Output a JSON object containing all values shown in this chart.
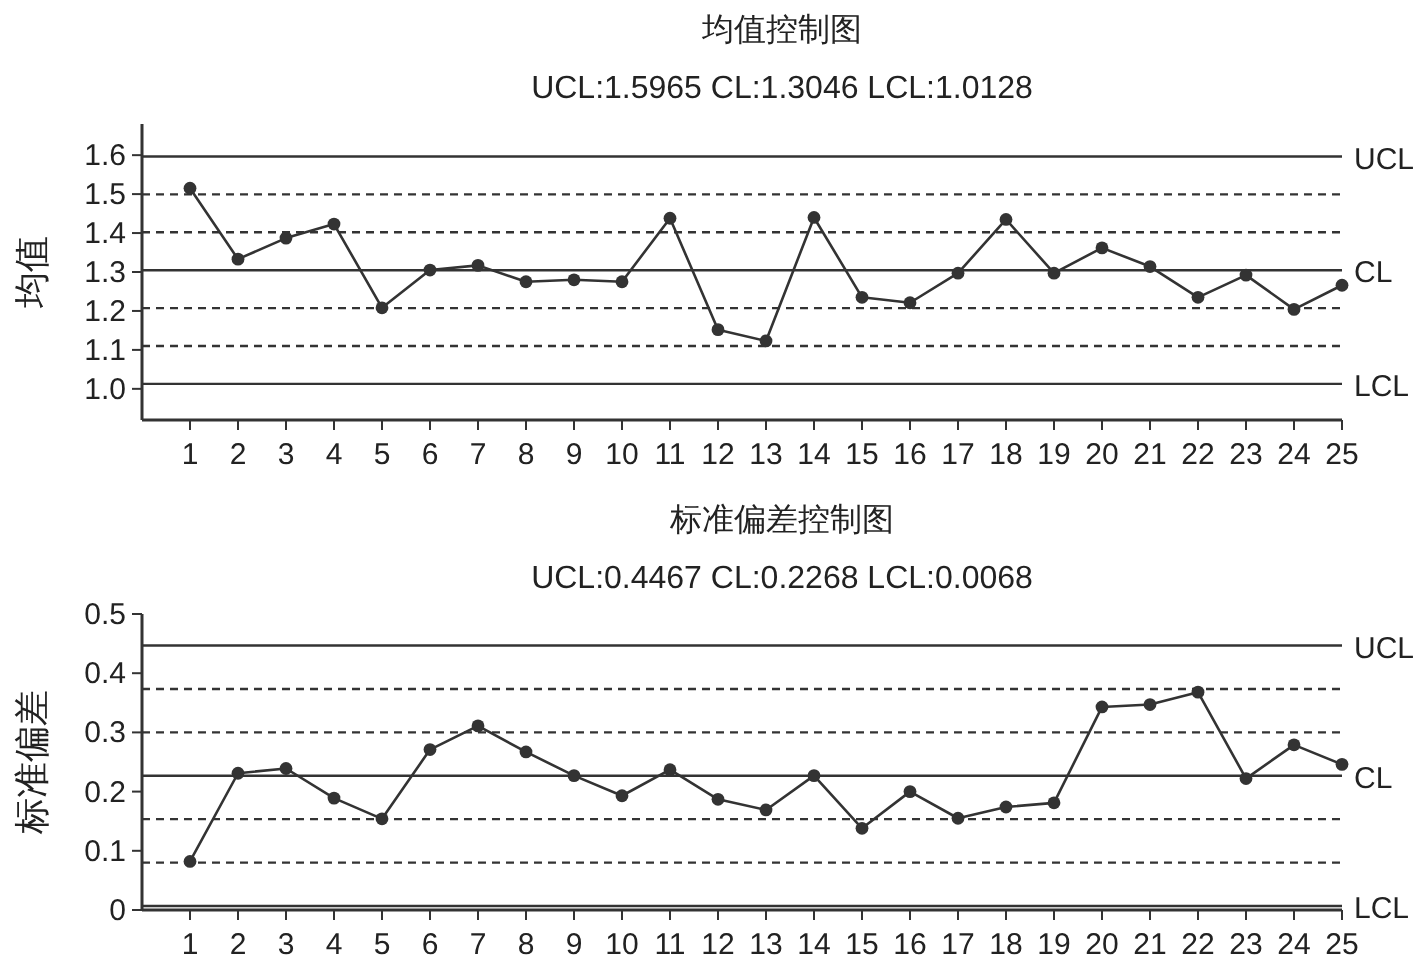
{
  "chart_data": [
    {
      "type": "line",
      "title": "均值控制图",
      "subtitle": "UCL:1.5965  CL:1.3046  LCL:1.0128",
      "ylabel": "均值",
      "x": [
        1,
        2,
        3,
        4,
        5,
        6,
        7,
        8,
        9,
        10,
        11,
        12,
        13,
        14,
        15,
        16,
        17,
        18,
        19,
        20,
        21,
        22,
        23,
        24,
        25
      ],
      "series": [
        {
          "color": "#333333",
          "values": [
            1.515,
            1.333,
            1.387,
            1.423,
            1.208,
            1.305,
            1.317,
            1.275,
            1.28,
            1.275,
            1.438,
            1.152,
            1.123,
            1.44,
            1.235,
            1.221,
            1.297,
            1.435,
            1.297,
            1.362,
            1.314,
            1.235,
            1.292,
            1.204,
            1.266
          ]
        }
      ],
      "xlim": [
        0,
        25
      ],
      "xticks": [
        1,
        2,
        3,
        4,
        5,
        6,
        7,
        8,
        9,
        10,
        11,
        12,
        13,
        14,
        15,
        16,
        17,
        18,
        19,
        20,
        21,
        22,
        23,
        24,
        25
      ],
      "ylim": [
        0.92,
        1.68
      ],
      "yticks": [
        {
          "value": 1,
          "label": "1.0"
        },
        1.1,
        1.2,
        1.3,
        1.4,
        1.5,
        1.6
      ],
      "grid": false,
      "marker": "circle",
      "line_style": "solid",
      "ref_lines": [
        {
          "axis": "y",
          "value": 1.5965,
          "label": "UCL",
          "line_style": "solid",
          "color": "#333333"
        },
        {
          "axis": "y",
          "value": 1.4992,
          "line_style": "dashed",
          "color": "#333333"
        },
        {
          "axis": "y",
          "value": 1.4019,
          "line_style": "dashed",
          "color": "#333333"
        },
        {
          "axis": "y",
          "value": 1.3046,
          "label": "CL",
          "line_style": "solid",
          "color": "#333333"
        },
        {
          "axis": "y",
          "value": 1.2073,
          "line_style": "dashed",
          "color": "#333333"
        },
        {
          "axis": "y",
          "value": 1.1101,
          "line_style": "dashed",
          "color": "#333333"
        },
        {
          "axis": "y",
          "value": 1.0128,
          "label": "LCL",
          "line_style": "solid",
          "color": "#333333"
        }
      ]
    },
    {
      "type": "line",
      "title": "标准偏差控制图",
      "subtitle": "UCL:0.4467  CL:0.2268  LCL:0.0068",
      "ylabel": "标准偏差",
      "x": [
        1,
        2,
        3,
        4,
        5,
        6,
        7,
        8,
        9,
        10,
        11,
        12,
        13,
        14,
        15,
        16,
        17,
        18,
        19,
        20,
        21,
        22,
        23,
        24,
        25
      ],
      "series": [
        {
          "color": "#333333",
          "values": [
            0.082,
            0.231,
            0.239,
            0.189,
            0.154,
            0.271,
            0.311,
            0.267,
            0.227,
            0.193,
            0.237,
            0.187,
            0.169,
            0.227,
            0.138,
            0.2,
            0.155,
            0.174,
            0.181,
            0.343,
            0.347,
            0.368,
            0.222,
            0.279,
            0.246
          ]
        }
      ],
      "xlim": [
        0,
        25
      ],
      "xticks": [
        1,
        2,
        3,
        4,
        5,
        6,
        7,
        8,
        9,
        10,
        11,
        12,
        13,
        14,
        15,
        16,
        17,
        18,
        19,
        20,
        21,
        22,
        23,
        24,
        25
      ],
      "ylim": [
        0,
        0.5
      ],
      "yticks": [
        0,
        0.1,
        0.2,
        0.3,
        0.4,
        0.5
      ],
      "grid": false,
      "marker": "circle",
      "line_style": "solid",
      "ref_lines": [
        {
          "axis": "y",
          "value": 0.4467,
          "label": "UCL",
          "line_style": "solid",
          "color": "#333333"
        },
        {
          "axis": "y",
          "value": 0.3734,
          "line_style": "dashed",
          "color": "#333333"
        },
        {
          "axis": "y",
          "value": 0.3001,
          "line_style": "dashed",
          "color": "#333333"
        },
        {
          "axis": "y",
          "value": 0.2268,
          "label": "CL",
          "line_style": "solid",
          "color": "#333333"
        },
        {
          "axis": "y",
          "value": 0.1535,
          "line_style": "dashed",
          "color": "#333333"
        },
        {
          "axis": "y",
          "value": 0.0801,
          "line_style": "dashed",
          "color": "#333333"
        },
        {
          "axis": "y",
          "value": 0.0068,
          "label": "LCL",
          "line_style": "solid",
          "color": "#333333"
        }
      ]
    }
  ]
}
